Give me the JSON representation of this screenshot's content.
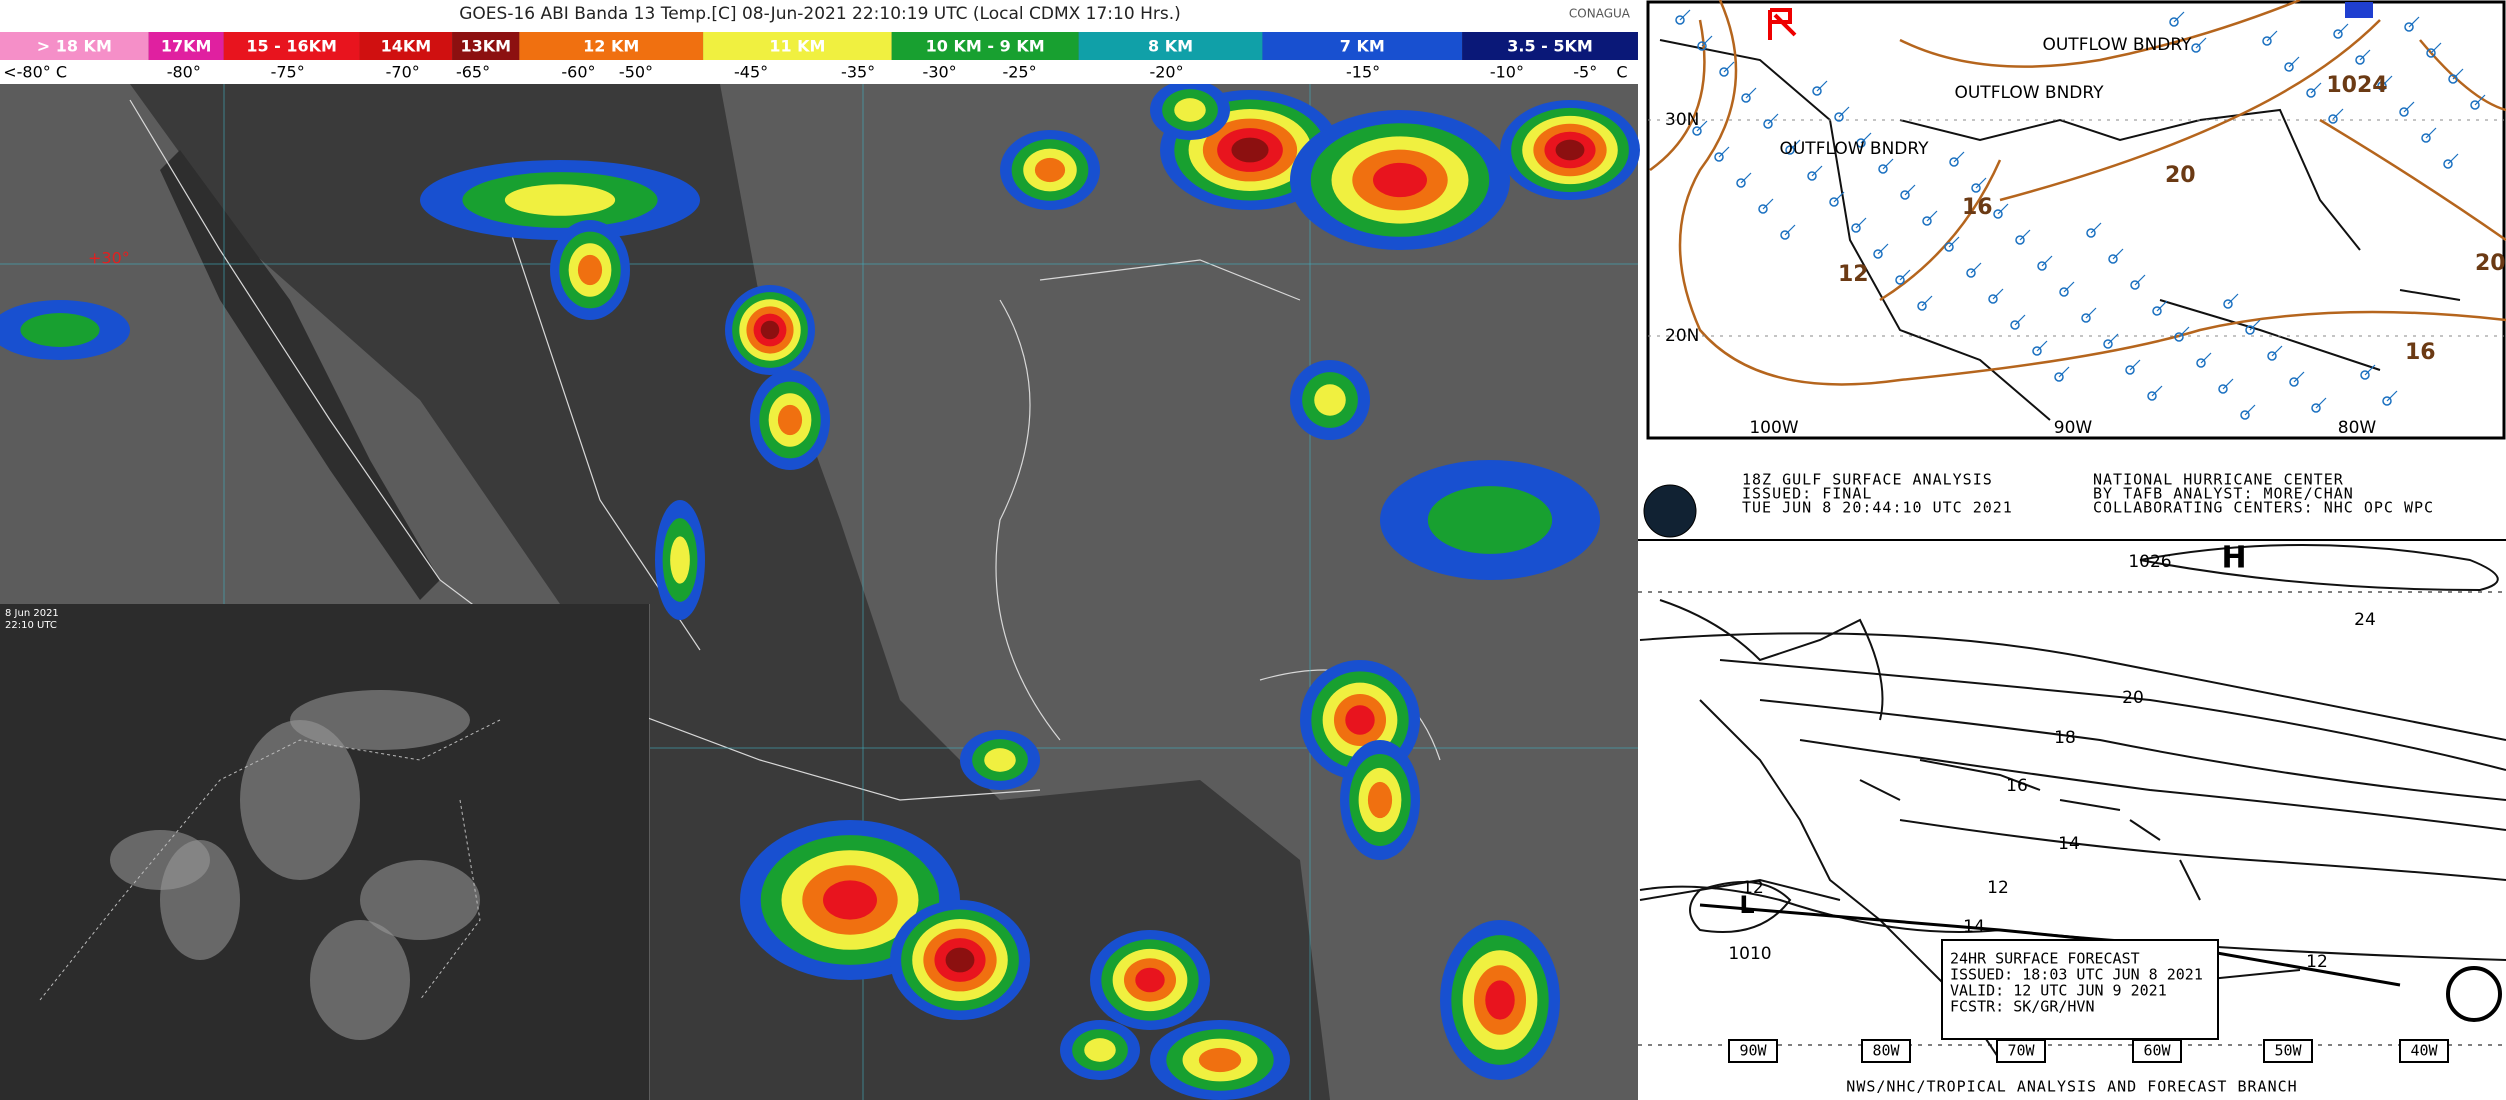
{
  "satellite": {
    "title": "GOES-16 ABI Banda 13 Temp.[C] 08-Jun-2021 22:10:19 UTC (Local CDMX  17:10 Hrs.)",
    "logo": "CONAGUA",
    "scale": [
      {
        "label": "> 18 KM",
        "color": "#f58fc8"
      },
      {
        "label": "17KM",
        "color": "#e020a0"
      },
      {
        "label": "15 - 16KM",
        "color": "#e8141e"
      },
      {
        "label": "14KM",
        "color": "#d01010"
      },
      {
        "label": "13KM",
        "color": "#8c1010"
      },
      {
        "label": "12 KM",
        "color": "#f07010"
      },
      {
        "label": "11 KM",
        "color": "#f0f040"
      },
      {
        "label": "10 KM - 9 KM",
        "color": "#18a030"
      },
      {
        "label": "8 KM",
        "color": "#10a0a8"
      },
      {
        "label": "7 KM",
        "color": "#1850d0"
      },
      {
        "label": "3.5 - 5KM",
        "color": "#0a1878"
      }
    ],
    "temps": [
      "<-80° C",
      "-80°",
      "-75°",
      "-70°",
      "-65°",
      "-60°",
      "-50°",
      "-45°",
      "-35°",
      "-30°",
      "-25°",
      "-20°",
      "-15°",
      "-10°",
      "-5°",
      "C"
    ],
    "marker": "+30°"
  },
  "inset": {
    "date": "8 Jun 2021",
    "time": "22:10 UTC"
  },
  "surface_map": {
    "boundaries": [
      "OUTFLOW BNDRY",
      "OUTFLOW BNDRY",
      "OUTFLOW BNDRY"
    ],
    "pressure": "1024",
    "isobars": [
      "20",
      "16",
      "12",
      "20",
      "16"
    ],
    "latitudes": [
      "30N",
      "20N"
    ],
    "longitudes": [
      "100W",
      "90W",
      "80W"
    ]
  },
  "nhc_map": {
    "header": [
      "18Z GULF SURFACE ANALYSIS",
      "NATIONAL HURRICANE CENTER",
      "ISSUED: FINAL",
      "TUE JUN 8 20:44:10 UTC 2021",
      "BY TAFB ANALYST: MORE/CHAN",
      "COLLABORATING CENTERS: NHC OPC WPC"
    ],
    "high": "H",
    "low": "L",
    "isobars": [
      "1026",
      "24",
      "20",
      "18",
      "16",
      "14",
      "12",
      "14",
      "12",
      "12",
      "1010"
    ],
    "forecast": [
      "24HR SURFACE FORECAST",
      "ISSUED: 18:03 UTC JUN 8 2021",
      "VALID: 12 UTC JUN 9 2021",
      "FCSTR: SK/GR/HVN"
    ],
    "longitudes": [
      "90W",
      "80W",
      "70W",
      "60W",
      "50W",
      "40W"
    ],
    "footer": "NWS/NHC/TROPICAL ANALYSIS AND FORECAST BRANCH"
  }
}
